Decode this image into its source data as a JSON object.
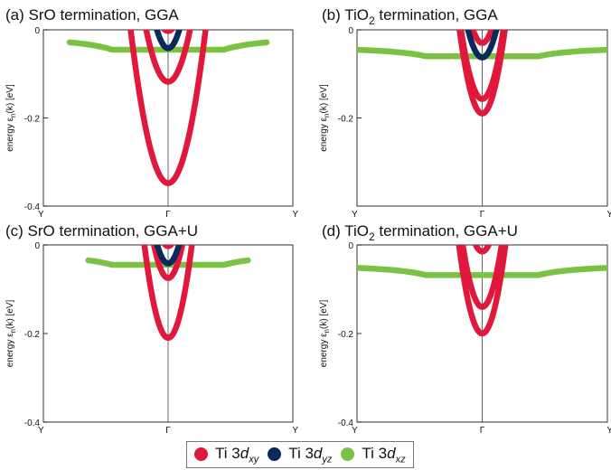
{
  "colors": {
    "xy": "#e0193c",
    "yz": "#0b2a5b",
    "xz": "#7cc242"
  },
  "legend": [
    {
      "key": "xy",
      "prefix": "Ti 3",
      "orb": "d",
      "sub": "xy"
    },
    {
      "key": "yz",
      "prefix": "Ti 3",
      "orb": "d",
      "sub": "yz"
    },
    {
      "key": "xz",
      "prefix": "Ti 3",
      "orb": "d",
      "sub": "xz"
    }
  ],
  "chart_data": [
    {
      "type": "line",
      "title_prefix": "(a) SrO termination, GGA",
      "title_sub": "",
      "title_suffix": "",
      "ylabel": "energy ε",
      "ylabel_sub": "n",
      "ylabel_suffix": "(k) [eV]",
      "xticks": [
        "Y",
        "Γ",
        "Y"
      ],
      "yticks": [
        "0",
        "-0.2",
        "-0.4"
      ],
      "ylim": [
        -0.4,
        0
      ],
      "xlim": [
        -1,
        1
      ],
      "series": [
        {
          "orbital": "xy",
          "kind": "parab",
          "e0": -0.348,
          "k": 3.86
        },
        {
          "orbital": "xy",
          "kind": "parab",
          "e0": -0.118,
          "k": 3.83
        },
        {
          "orbital": "xy",
          "kind": "parab",
          "e0": -0.003,
          "k": 4.5
        },
        {
          "orbital": "yz",
          "kind": "parab",
          "e0": -0.042,
          "k": 5.2
        },
        {
          "orbital": "xz",
          "kind": "flat",
          "e0": -0.045,
          "k": 0.092,
          "xmin": -0.79,
          "xmax": 0.79
        }
      ]
    },
    {
      "type": "line",
      "title_prefix": "(b) TiO",
      "title_sub": "2",
      "title_suffix": " termination, GGA",
      "ylabel": "energy ε",
      "ylabel_sub": "n",
      "ylabel_suffix": "(k) [eV]",
      "xticks": [
        "Y",
        "Γ",
        "Y"
      ],
      "yticks": [
        "0",
        "-0.2"
      ],
      "ylim": [
        -0.4,
        0
      ],
      "xlim": [
        -1,
        1
      ],
      "series": [
        {
          "orbital": "xy",
          "kind": "parab",
          "e0": -0.19,
          "k": 5.8,
          "xmin": -0.41,
          "xmax": 0.41
        },
        {
          "orbital": "xy",
          "kind": "parab",
          "e0": -0.157,
          "k": 5.5,
          "xmin": -0.41,
          "xmax": 0.41
        },
        {
          "orbital": "xy",
          "kind": "parab",
          "e0": -0.03,
          "k": 5.5
        },
        {
          "orbital": "yz",
          "kind": "parab",
          "e0": -0.063,
          "k": 4.9
        },
        {
          "orbital": "xz",
          "kind": "flat",
          "e0": -0.06,
          "k": 0.065,
          "xmin": -1,
          "xmax": 1
        }
      ]
    },
    {
      "type": "line",
      "title_prefix": "(c) SrO termination, GGA+U",
      "title_sub": "",
      "title_suffix": "",
      "ylabel": "energy ε",
      "ylabel_sub": "n",
      "ylabel_suffix": "(k) [eV]",
      "xticks": [
        "Y",
        "Γ",
        "Y"
      ],
      "yticks": [
        "0",
        "-0.2",
        "-0.4"
      ],
      "ylim": [
        -0.4,
        0
      ],
      "xlim": [
        -1,
        1
      ],
      "series": [
        {
          "orbital": "xy",
          "kind": "parab",
          "e0": -0.21,
          "k": 5.8
        },
        {
          "orbital": "xy",
          "kind": "parab",
          "e0": -0.075,
          "k": 5.8
        },
        {
          "orbital": "xy",
          "kind": "parab",
          "e0": -0.003,
          "k": 6.0
        },
        {
          "orbital": "yz",
          "kind": "parab",
          "e0": -0.042,
          "k": 5.5
        },
        {
          "orbital": "xz",
          "kind": "flat",
          "e0": -0.045,
          "k": 0.08,
          "xmin": -0.64,
          "xmax": 0.64
        }
      ]
    },
    {
      "type": "line",
      "title_prefix": "(d) TiO",
      "title_sub": "2",
      "title_suffix": " termination, GGA+U",
      "ylabel": "energy ε",
      "ylabel_sub": "n",
      "ylabel_suffix": "(k) [eV]",
      "xticks": [
        "Y",
        "Γ",
        "Y"
      ],
      "yticks": [
        "0",
        "-0.2",
        "-0.4"
      ],
      "ylim": [
        -0.4,
        0
      ],
      "xlim": [
        -1,
        1
      ],
      "series": [
        {
          "orbital": "xy",
          "kind": "parab",
          "e0": -0.2,
          "k": 5.8,
          "xmin": -0.4,
          "xmax": 0.4
        },
        {
          "orbital": "xy",
          "kind": "parab",
          "e0": -0.14,
          "k": 5.8,
          "xmin": -0.4,
          "xmax": 0.4
        },
        {
          "orbital": "xy",
          "kind": "parab",
          "e0": -0.015,
          "k": 5.5
        },
        {
          "orbital": "xz",
          "kind": "flat",
          "e0": -0.068,
          "k": 0.072,
          "xmin": -1,
          "xmax": 1
        }
      ]
    }
  ]
}
